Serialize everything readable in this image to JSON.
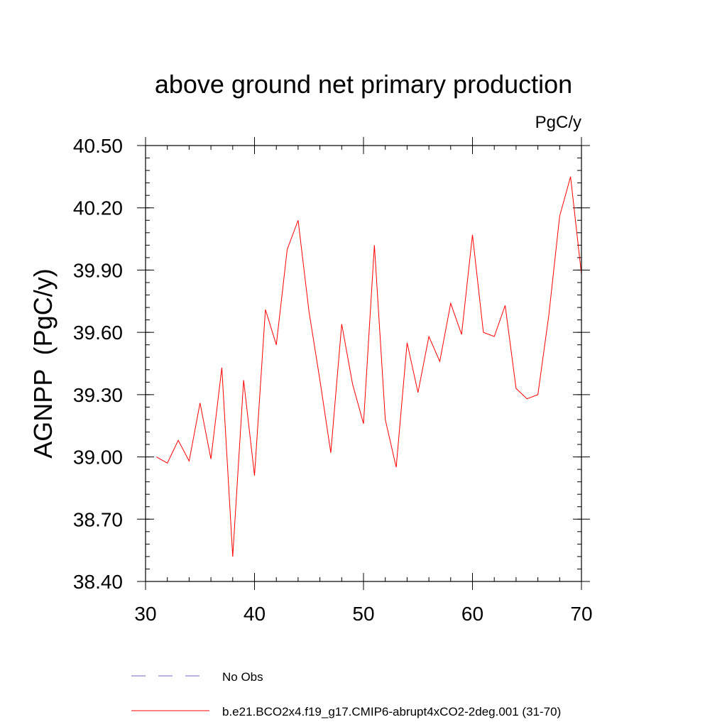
{
  "chart_data": {
    "type": "line",
    "title": "above ground net primary production",
    "units_label": "PgC/y",
    "xlabel": "",
    "ylabel": "AGNPP  (PgC/y)",
    "xlim": [
      30,
      70
    ],
    "ylim": [
      38.4,
      40.5
    ],
    "x_major_ticks": [
      30,
      40,
      50,
      60,
      70
    ],
    "x_minor_step": 2,
    "y_major_ticks": [
      38.4,
      38.7,
      39.0,
      39.3,
      39.6,
      39.9,
      40.2,
      40.5
    ],
    "y_tick_labels": [
      "38.40",
      "38.70",
      "39.00",
      "39.30",
      "39.60",
      "39.90",
      "40.20",
      "40.50"
    ],
    "y_minor_step": 0.06,
    "series": [
      {
        "name": "b.e21.BCO2x4.f19_g17.CMIP6-abrupt4xCO2-2deg.001 (31-70)",
        "color": "#ff0000",
        "dash": "solid",
        "x": [
          31,
          32,
          33,
          34,
          35,
          36,
          37,
          38,
          39,
          40,
          41,
          42,
          43,
          44,
          45,
          46,
          47,
          48,
          49,
          50,
          51,
          52,
          53,
          54,
          55,
          56,
          57,
          58,
          59,
          60,
          61,
          62,
          63,
          64,
          65,
          66,
          67,
          68,
          69,
          70
        ],
        "values": [
          39.0,
          38.97,
          39.08,
          38.98,
          39.26,
          38.99,
          39.43,
          38.52,
          39.37,
          38.91,
          39.71,
          39.54,
          40.0,
          40.14,
          39.7,
          39.37,
          39.02,
          39.64,
          39.35,
          39.16,
          40.02,
          39.18,
          38.95,
          39.55,
          39.31,
          39.58,
          39.46,
          39.74,
          39.59,
          40.07,
          39.6,
          39.58,
          39.73,
          39.33,
          39.28,
          39.3,
          39.68,
          40.16,
          40.35,
          39.88
        ]
      }
    ],
    "legend": [
      {
        "label": "No Obs",
        "color": "#6b6bc8",
        "dash": "dashed"
      },
      {
        "label": "b.e21.BCO2x4.f19_g17.CMIP6-abrupt4xCO2-2deg.001 (31-70)",
        "color": "#ff0000",
        "dash": "solid"
      }
    ],
    "legend_position": "bottom",
    "grid": false
  }
}
